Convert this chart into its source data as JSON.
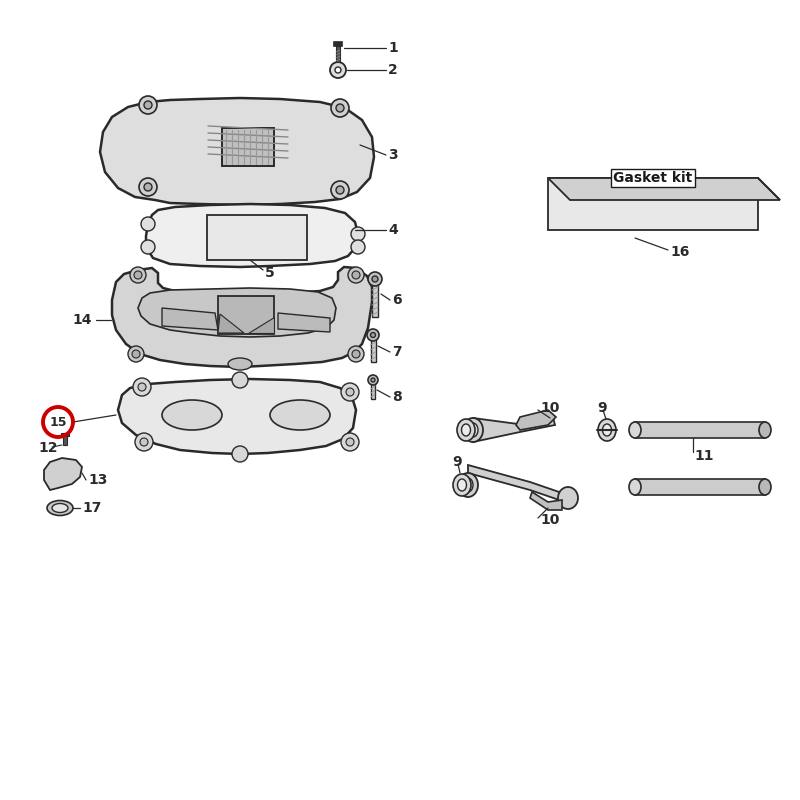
{
  "bg_color": "#ffffff",
  "line_color": "#2a2a2a",
  "fill_light": "#e0e0e0",
  "fill_mid": "#c8c8c8",
  "fill_dark": "#b0b0b0",
  "red_circle": "#cc0000",
  "gasket_text": "Gasket kit"
}
